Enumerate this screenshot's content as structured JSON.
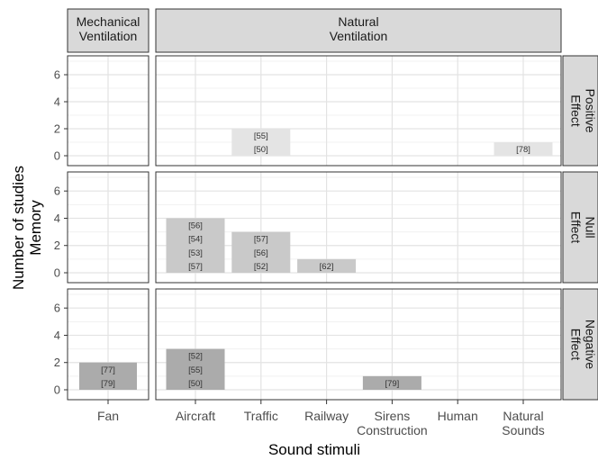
{
  "chart_data": {
    "type": "bar",
    "ylabel_lines": [
      "Number of studies",
      "Memory"
    ],
    "xlabel": "Sound stimuli",
    "y_ticks": [
      0,
      2,
      4,
      6
    ],
    "ylim": [
      0,
      7.4
    ],
    "grid": true,
    "columns": [
      {
        "label_lines": [
          "Mechanical",
          "Ventilation"
        ],
        "categories": [
          "Fan"
        ],
        "category_lines": [
          [
            "Fan"
          ]
        ]
      },
      {
        "label_lines": [
          "Natural",
          "Ventilation"
        ],
        "categories": [
          "Aircraft",
          "Traffic",
          "Railway",
          "Sirens Construction",
          "Human",
          "Natural Sounds"
        ],
        "category_lines": [
          [
            "Aircraft"
          ],
          [
            "Traffic"
          ],
          [
            "Railway"
          ],
          [
            "Sirens",
            "Construction"
          ],
          [
            "Human"
          ],
          [
            "Natural",
            "Sounds"
          ]
        ]
      }
    ],
    "rows": [
      {
        "label_lines": [
          "Positive",
          "Effect"
        ],
        "bar_color": "#e4e4e4"
      },
      {
        "label_lines": [
          "Null",
          "Effect"
        ],
        "bar_color": "#c9c9c9"
      },
      {
        "label_lines": [
          "Negative",
          "Effect"
        ],
        "bar_color": "#ababab"
      }
    ],
    "bars": [
      {
        "row": 0,
        "column": 1,
        "category": "Traffic",
        "value": 2,
        "refs": [
          "[50]",
          "[55]"
        ]
      },
      {
        "row": 0,
        "column": 1,
        "category": "Natural Sounds",
        "value": 1,
        "refs": [
          "[78]"
        ]
      },
      {
        "row": 1,
        "column": 1,
        "category": "Aircraft",
        "value": 4,
        "refs": [
          "[57]",
          "[53]",
          "[54]",
          "[56]"
        ]
      },
      {
        "row": 1,
        "column": 1,
        "category": "Traffic",
        "value": 3,
        "refs": [
          "[52]",
          "[56]",
          "[57]"
        ]
      },
      {
        "row": 1,
        "column": 1,
        "category": "Railway",
        "value": 1,
        "refs": [
          "[62]"
        ]
      },
      {
        "row": 2,
        "column": 0,
        "category": "Fan",
        "value": 2,
        "refs": [
          "[79]",
          "[77]"
        ]
      },
      {
        "row": 2,
        "column": 1,
        "category": "Aircraft",
        "value": 3,
        "refs": [
          "[50]",
          "[55]",
          "[52]"
        ]
      },
      {
        "row": 2,
        "column": 1,
        "category": "Sirens Construction",
        "value": 1,
        "refs": [
          "[79]"
        ]
      }
    ]
  }
}
